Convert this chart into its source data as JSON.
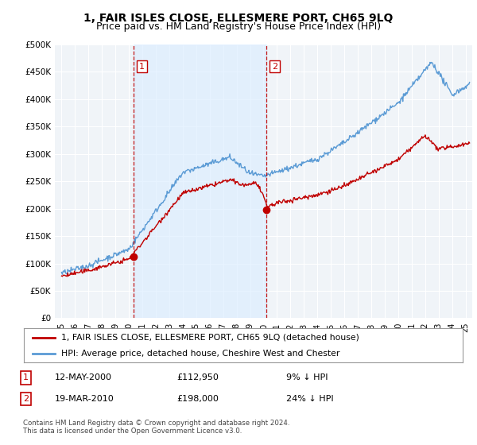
{
  "title": "1, FAIR ISLES CLOSE, ELLESMERE PORT, CH65 9LQ",
  "subtitle": "Price paid vs. HM Land Registry's House Price Index (HPI)",
  "title_fontsize": 10,
  "subtitle_fontsize": 9,
  "ylabel_ticks": [
    "£0",
    "£50K",
    "£100K",
    "£150K",
    "£200K",
    "£250K",
    "£300K",
    "£350K",
    "£400K",
    "£450K",
    "£500K"
  ],
  "ytick_values": [
    0,
    50000,
    100000,
    150000,
    200000,
    250000,
    300000,
    350000,
    400000,
    450000,
    500000
  ],
  "ylim": [
    0,
    500000
  ],
  "xlim_start": 1994.5,
  "xlim_end": 2025.5,
  "hpi_color": "#5b9bd5",
  "price_color": "#c00000",
  "marker_color": "#c00000",
  "vline_color": "#c00000",
  "shade_color": "#ddeeff",
  "background_color": "#ffffff",
  "plot_bg_color": "#f0f4f8",
  "grid_color": "#ffffff",
  "legend_label_price": "1, FAIR ISLES CLOSE, ELLESMERE PORT, CH65 9LQ (detached house)",
  "legend_label_hpi": "HPI: Average price, detached house, Cheshire West and Chester",
  "sale1_label": "1",
  "sale1_date": "12-MAY-2000",
  "sale1_price": "£112,950",
  "sale1_pct": "9% ↓ HPI",
  "sale1_year": 2000.36,
  "sale1_value": 112950,
  "sale2_label": "2",
  "sale2_date": "19-MAR-2010",
  "sale2_price": "£198,000",
  "sale2_pct": "24% ↓ HPI",
  "sale2_year": 2010.21,
  "sale2_value": 198000,
  "footer": "Contains HM Land Registry data © Crown copyright and database right 2024.\nThis data is licensed under the Open Government Licence v3.0.",
  "xtick_years": [
    "95",
    "96",
    "97",
    "98",
    "99",
    "00",
    "01",
    "02",
    "03",
    "04",
    "05",
    "06",
    "07",
    "08",
    "09",
    "10",
    "11",
    "12",
    "13",
    "14",
    "15",
    "16",
    "17",
    "18",
    "19",
    "20",
    "21",
    "22",
    "23",
    "24",
    "25"
  ]
}
